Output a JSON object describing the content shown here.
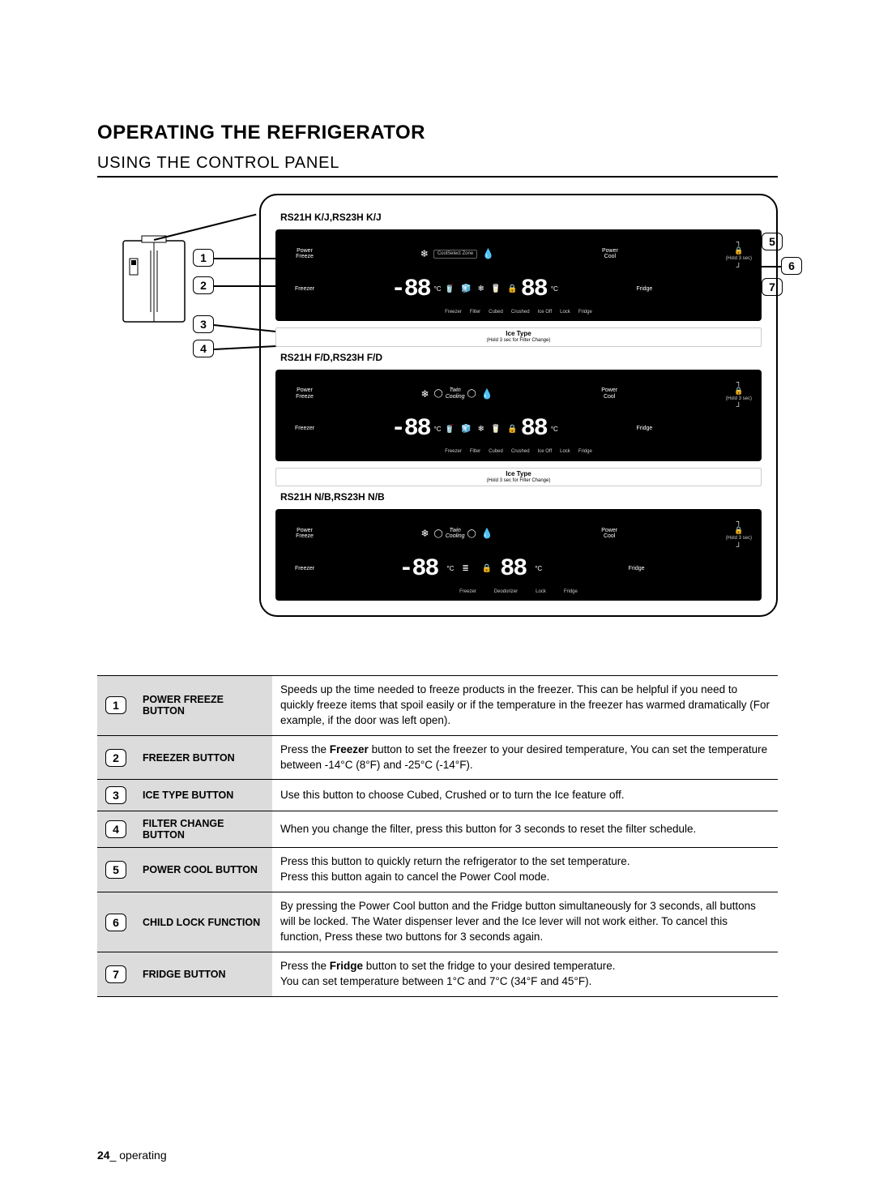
{
  "title": "OPERATING THE REFRIGERATOR",
  "subtitle": "USING THE CONTROL PANEL",
  "models": {
    "a": "RS21H K/J,RS23H K/J",
    "b": "RS21H F/D,RS23H F/D",
    "c": "RS21H N/B,RS23H N/B"
  },
  "panel": {
    "power_freeze": "Power\nFreeze",
    "power_cool": "Power\nCool",
    "freezer": "Freezer",
    "fridge": "Fridge",
    "freezer_temp": "-88",
    "fridge_temp": "88",
    "unit": "°C",
    "cool_select": "CoolSelect Zone",
    "twin": "Twin\nCooling",
    "hold3": "(Hold 3 sec)",
    "ice_type": "Ice Type",
    "ice_sub": "(Hold 3 sec for Filter Change)",
    "icons": {
      "pf": "Power Freeze",
      "pc": "Power Cool",
      "frz": "Freezer",
      "flt": "Filter",
      "cub": "Cubed",
      "crs": "Crushed",
      "off": "Ice Off",
      "lck": "Lock",
      "frg": "Fridge",
      "deo": "Deodorizer"
    }
  },
  "callouts": {
    "c1": "1",
    "c2": "2",
    "c3": "3",
    "c4": "4",
    "c5": "5",
    "c6": "6",
    "c7": "7"
  },
  "table": [
    {
      "n": "1",
      "label": "POWER FREEZE BUTTON",
      "desc": "Speeds up the time needed to freeze products in the freezer. This can be helpful if you need to quickly freeze items that spoil easily or if the temperature in the freezer has warmed dramatically (For example, if the door was left open)."
    },
    {
      "n": "2",
      "label": "FREEZER BUTTON",
      "desc": "Press the <b>Freezer</b> button to set the freezer to your desired temperature, You can set the temperature between -14°C (8°F) and -25°C (-14°F)."
    },
    {
      "n": "3",
      "label": "ICE TYPE BUTTON",
      "desc": "Use this button to choose Cubed, Crushed or to turn the Ice feature off."
    },
    {
      "n": "4",
      "label": "FILTER CHANGE BUTTON",
      "desc": "When you change the filter, press this button for 3 seconds to reset the filter schedule."
    },
    {
      "n": "5",
      "label": "POWER COOL BUTTON",
      "desc": "Press this button to quickly return the refrigerator to the set temperature.\nPress this button again to cancel the Power Cool mode."
    },
    {
      "n": "6",
      "label": "CHILD LOCK FUNCTION",
      "desc": "By pressing the Power Cool button and the Fridge button simultaneously for 3 seconds, all buttons will be locked. The Water dispenser lever and the Ice lever will not work either. To cancel this function, Press these two buttons for 3 seconds again."
    },
    {
      "n": "7",
      "label": "FRIDGE BUTTON",
      "desc": "Press the <b>Fridge</b> button to set the fridge to your desired temperature.\nYou can set temperature between 1°C and 7°C (34°F and 45°F)."
    }
  ],
  "footer": {
    "page": "24",
    "section": "_ operating"
  }
}
